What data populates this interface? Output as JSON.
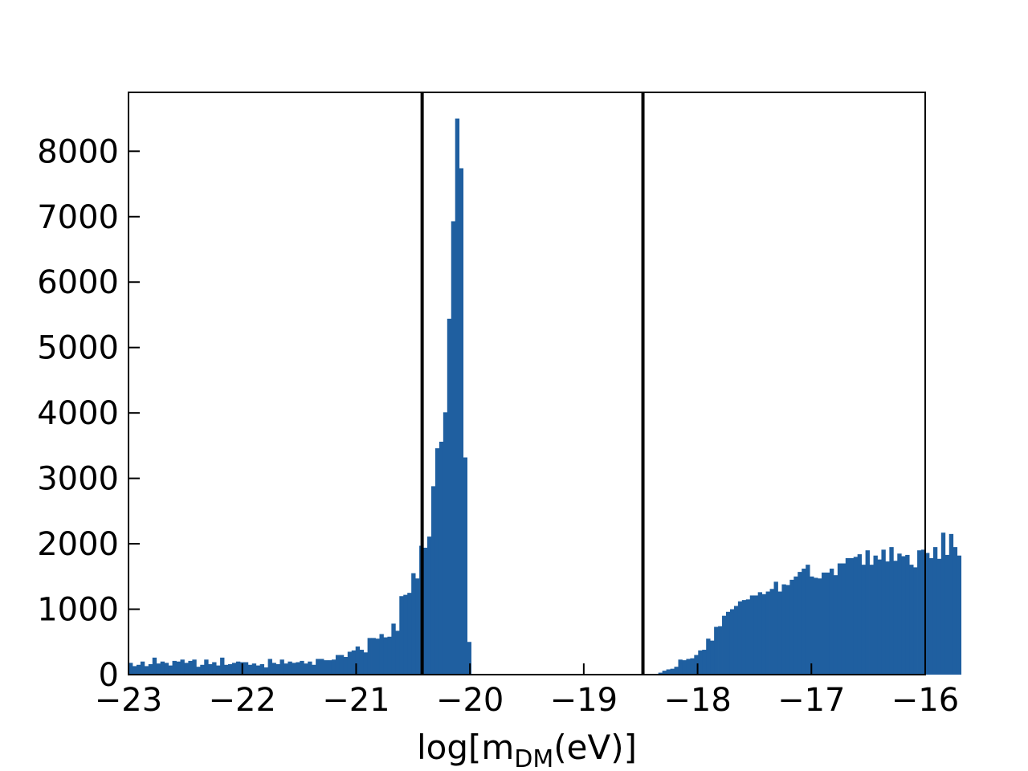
{
  "chart_data": {
    "type": "bar",
    "title": "",
    "xlabel": {
      "main": "log[m",
      "sub": "DM",
      "tail": "(eV)]"
    },
    "ylabel": "",
    "xlim": [
      -23,
      -16
    ],
    "ylim": [
      0,
      8900
    ],
    "x_ticks": [
      -23,
      -22,
      -21,
      -20,
      -19,
      -18,
      -17,
      -16
    ],
    "x_tick_labels": [
      "−23",
      "−22",
      "−21",
      "−20",
      "−19",
      "−18",
      "−17",
      "−16"
    ],
    "y_ticks": [
      0,
      1000,
      2000,
      3000,
      4000,
      5000,
      6000,
      7000,
      8000
    ],
    "y_tick_labels": [
      "0",
      "1000",
      "2000",
      "3000",
      "4000",
      "5000",
      "6000",
      "7000",
      "8000"
    ],
    "bar_color": "#1f5fa0",
    "bin_start": -23,
    "bin_width": 0.035,
    "values": [
      180,
      130,
      150,
      200,
      130,
      160,
      260,
      170,
      200,
      180,
      140,
      210,
      200,
      230,
      180,
      210,
      230,
      120,
      150,
      230,
      160,
      190,
      140,
      260,
      150,
      160,
      180,
      200,
      190,
      190,
      150,
      170,
      140,
      160,
      110,
      240,
      180,
      160,
      230,
      170,
      200,
      180,
      190,
      210,
      170,
      200,
      150,
      240,
      240,
      220,
      220,
      230,
      300,
      300,
      270,
      350,
      370,
      430,
      380,
      340,
      560,
      560,
      550,
      620,
      570,
      580,
      780,
      670,
      1200,
      1220,
      1250,
      1550,
      1470,
      1970,
      1940,
      2110,
      2880,
      3460,
      3560,
      4010,
      5440,
      6930,
      8500,
      7740,
      3320,
      500,
      0,
      0,
      0,
      0,
      0,
      0,
      0,
      0,
      0,
      0,
      0,
      0,
      0,
      0,
      0,
      0,
      0,
      0,
      0,
      0,
      0,
      0,
      0,
      0,
      0,
      0,
      0,
      0,
      0,
      0,
      0,
      0,
      0,
      0,
      0,
      0,
      0,
      0,
      0,
      0,
      0,
      0,
      0,
      0,
      0,
      0,
      0,
      30,
      60,
      80,
      90,
      120,
      230,
      220,
      240,
      250,
      300,
      370,
      380,
      550,
      520,
      730,
      740,
      900,
      960,
      1000,
      1050,
      1120,
      1140,
      1150,
      1210,
      1210,
      1260,
      1230,
      1270,
      1310,
      1420,
      1270,
      1380,
      1370,
      1450,
      1500,
      1570,
      1620,
      1680,
      1500,
      1480,
      1470,
      1560,
      1560,
      1620,
      1520,
      1700,
      1700,
      1780,
      1780,
      1800,
      1840,
      1680,
      1900,
      1680,
      1820,
      1760,
      1910,
      1730,
      1950,
      1740,
      1850,
      1810,
      1830,
      1680,
      1640,
      1900,
      1910,
      1860,
      1780,
      1950,
      1770,
      2170,
      1830,
      2150,
      1950,
      1820
    ],
    "vlines": [
      -20.42,
      -18.48
    ]
  }
}
